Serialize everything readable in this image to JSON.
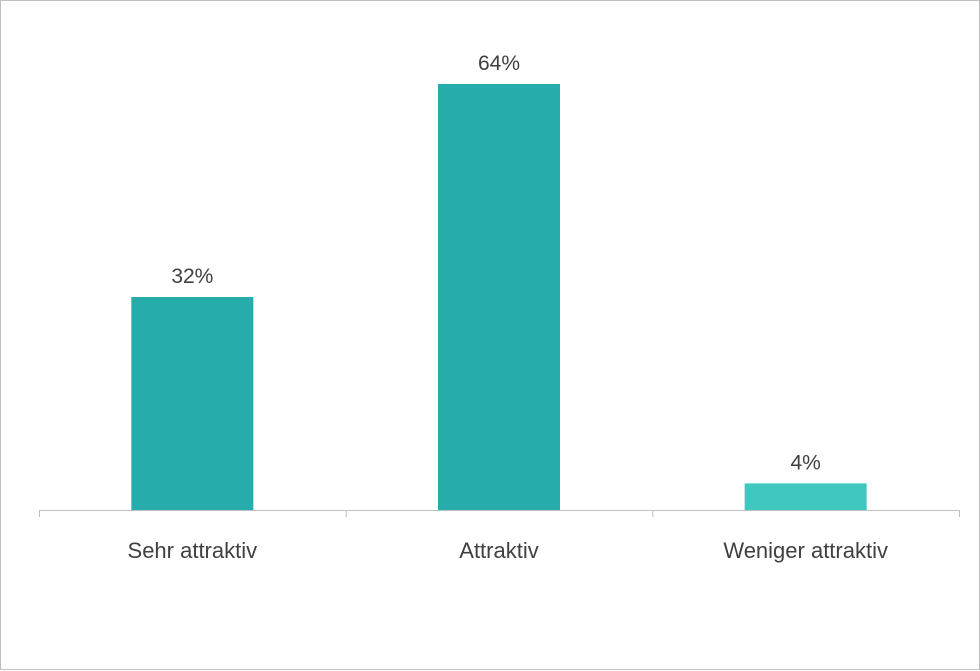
{
  "chart_data": {
    "type": "bar",
    "categories": [
      "Sehr attraktiv",
      "Attraktiv",
      "Weniger attraktiv"
    ],
    "values": [
      32,
      64,
      4
    ],
    "value_labels": [
      "32%",
      "64%",
      "4%"
    ],
    "unit": "%",
    "ylim": [
      0,
      64
    ],
    "grid": false,
    "legend": "none",
    "colors": {
      "bars": [
        "#26ADAB",
        "#26ADAB",
        "#3EC8C0"
      ],
      "axis": "#BFBFBF",
      "text": "#404040"
    }
  }
}
